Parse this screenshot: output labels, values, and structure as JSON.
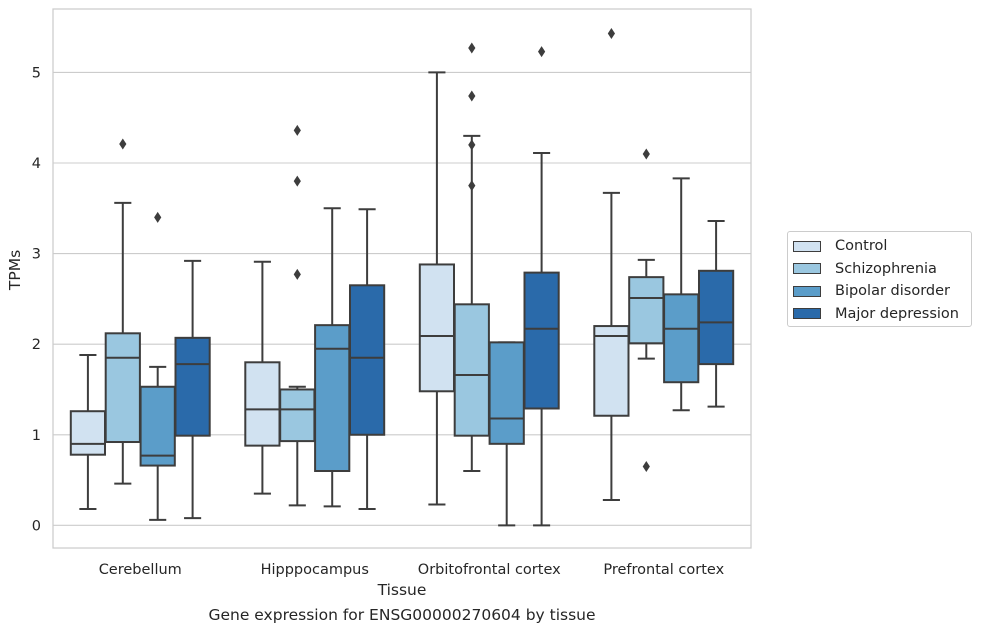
{
  "caption": "Gene expression for ENSG00000270604 by tissue",
  "chart_data": {
    "type": "box",
    "xlabel": "Tissue",
    "ylabel": "TPMs",
    "ylim": [
      -0.25,
      5.7
    ],
    "yticks": [
      0,
      1,
      2,
      3,
      4,
      5
    ],
    "grid": "horizontal",
    "legend_position": "right",
    "categories": [
      "Cerebellum",
      "Hipppocampus",
      "Orbitofrontal cortex",
      "Prefrontal cortex"
    ],
    "series": [
      {
        "name": "Control",
        "color": "#d1e2f1",
        "boxes": [
          {
            "whislo": 0.18,
            "q1": 0.78,
            "med": 0.9,
            "q3": 1.26,
            "whishi": 1.88,
            "fliers": []
          },
          {
            "whislo": 0.35,
            "q1": 0.88,
            "med": 1.28,
            "q3": 1.8,
            "whishi": 2.91,
            "fliers": []
          },
          {
            "whislo": 0.23,
            "q1": 1.48,
            "med": 2.09,
            "q3": 2.88,
            "whishi": 5.0,
            "fliers": []
          },
          {
            "whislo": 0.28,
            "q1": 1.21,
            "med": 2.09,
            "q3": 2.2,
            "whishi": 3.67,
            "fliers": [
              5.43
            ]
          }
        ]
      },
      {
        "name": "Schizophrenia",
        "color": "#9ac7e0",
        "boxes": [
          {
            "whislo": 0.46,
            "q1": 0.92,
            "med": 1.85,
            "q3": 2.12,
            "whishi": 3.56,
            "fliers": [
              4.21
            ]
          },
          {
            "whislo": 0.22,
            "q1": 0.93,
            "med": 1.28,
            "q3": 1.5,
            "whishi": 1.53,
            "fliers": [
              2.77,
              3.8,
              4.36
            ]
          },
          {
            "whislo": 0.6,
            "q1": 0.99,
            "med": 1.66,
            "q3": 2.44,
            "whishi": 4.3,
            "fliers": [
              3.75,
              4.2,
              4.74,
              5.27
            ]
          },
          {
            "whislo": 1.84,
            "q1": 2.01,
            "med": 2.51,
            "q3": 2.74,
            "whishi": 2.93,
            "fliers": [
              0.65,
              4.1
            ]
          }
        ]
      },
      {
        "name": "Bipolar disorder",
        "color": "#5b9dc9",
        "boxes": [
          {
            "whislo": 0.06,
            "q1": 0.66,
            "med": 0.77,
            "q3": 1.53,
            "whishi": 1.75,
            "fliers": [
              3.4
            ]
          },
          {
            "whislo": 0.21,
            "q1": 0.6,
            "med": 1.95,
            "q3": 2.21,
            "whishi": 3.5,
            "fliers": []
          },
          {
            "whislo": 0.0,
            "q1": 0.9,
            "med": 1.18,
            "q3": 2.02,
            "whishi": 2.02,
            "fliers": []
          },
          {
            "whislo": 1.27,
            "q1": 1.58,
            "med": 2.17,
            "q3": 2.55,
            "whishi": 3.83,
            "fliers": []
          }
        ]
      },
      {
        "name": "Major depression",
        "color": "#2a6aaa",
        "boxes": [
          {
            "whislo": 0.08,
            "q1": 0.99,
            "med": 1.78,
            "q3": 2.07,
            "whishi": 2.92,
            "fliers": []
          },
          {
            "whislo": 0.18,
            "q1": 1.0,
            "med": 1.85,
            "q3": 2.65,
            "whishi": 3.49,
            "fliers": []
          },
          {
            "whislo": 0.0,
            "q1": 1.29,
            "med": 2.17,
            "q3": 2.79,
            "whishi": 4.11,
            "fliers": [
              5.23
            ]
          },
          {
            "whislo": 1.31,
            "q1": 1.78,
            "med": 2.24,
            "q3": 2.81,
            "whishi": 3.36,
            "fliers": []
          }
        ]
      }
    ]
  }
}
